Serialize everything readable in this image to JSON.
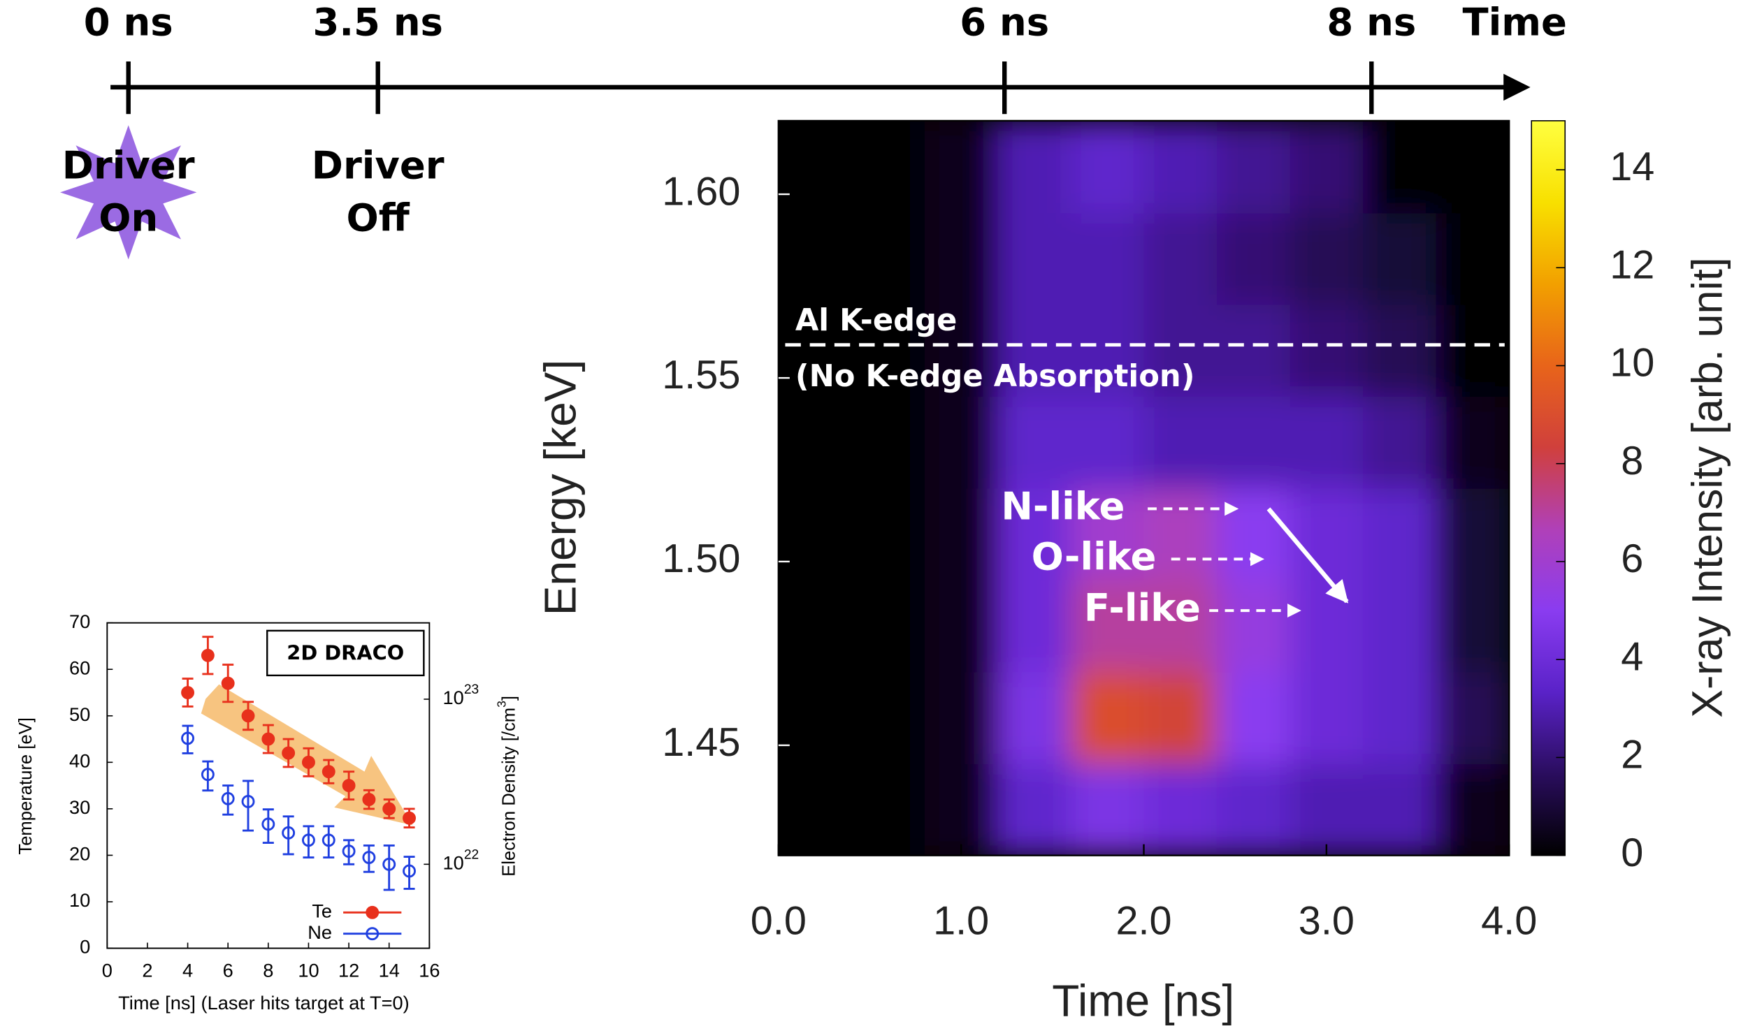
{
  "timeline": {
    "ticks": [
      "0 ns",
      "3.5 ns",
      "6 ns",
      "8 ns"
    ],
    "axis_label": "Time",
    "events": [
      {
        "lines": [
          "Driver",
          "On"
        ]
      },
      {
        "lines": [
          "Driver",
          "Off"
        ]
      }
    ]
  },
  "chart_data": [
    {
      "type": "heatmap",
      "xlabel": "Time [ns]",
      "ylabel": "Energy [keV]",
      "colorbar_label": "X-ray Intensity [arb. unit]",
      "xlim": [
        0,
        4
      ],
      "xticks": [
        {
          "value": 0,
          "label": "0.0"
        },
        {
          "value": 1,
          "label": "1.0"
        },
        {
          "value": 2,
          "label": "2.0"
        },
        {
          "value": 3,
          "label": "3.0"
        },
        {
          "value": 4,
          "label": "4.0"
        }
      ],
      "ylim": [
        1.42,
        1.62
      ],
      "yticks": [
        1.45,
        {
          "value": 1.5,
          "label": "1.50"
        },
        1.55,
        {
          "value": 1.6,
          "label": "1.60"
        }
      ],
      "zlim": [
        0,
        15
      ],
      "zticks": [
        0,
        2,
        4,
        6,
        8,
        10,
        12,
        14
      ],
      "colorscale": [
        "#000000",
        "#2a0d5e",
        "#5a22c8",
        "#8a3cf0",
        "#b040b8",
        "#d0403c",
        "#e8641a",
        "#f2a000",
        "#f8e000",
        "#ffff40"
      ],
      "x_bins": [
        0,
        0.4,
        0.8,
        1.2,
        1.6,
        2.0,
        2.4,
        2.8,
        3.2,
        3.6,
        4.0
      ],
      "y_bins": [
        1.42,
        1.445,
        1.47,
        1.495,
        1.52,
        1.545,
        1.57,
        1.595,
        1.62
      ],
      "values": [
        [
          0,
          0,
          0.5,
          3.5,
          4.5,
          4,
          3.5,
          3,
          3,
          0.5
        ],
        [
          0,
          0,
          0.5,
          4.5,
          9,
          8.5,
          5,
          4,
          3.5,
          1.5
        ],
        [
          0,
          0,
          0.5,
          4,
          7,
          7,
          5.5,
          4,
          3.5,
          1
        ],
        [
          0,
          0,
          0.5,
          4,
          6,
          6.5,
          5,
          4,
          3.5,
          1
        ],
        [
          0,
          0,
          0.5,
          3.5,
          3.5,
          3,
          3,
          3,
          2.5,
          0.5
        ],
        [
          0,
          0,
          0.5,
          3,
          3,
          2.5,
          2.5,
          2,
          1.5,
          0
        ],
        [
          0,
          0,
          0.5,
          3,
          3,
          2.5,
          2,
          1.5,
          1,
          0
        ],
        [
          0,
          0,
          0.5,
          3,
          3.5,
          3,
          2.5,
          2,
          0,
          0
        ]
      ],
      "reference_line": {
        "y": 1.559,
        "label": "Al K-edge",
        "note": "(No K-edge Absorption)"
      },
      "annotations": [
        "N-like",
        "O-like",
        "F-like"
      ]
    },
    {
      "type": "errorbar",
      "annotation": "2D DRACO",
      "xlabel": "Time [ns] (Laser hits target at T=0)",
      "ylabel": "Temperature [eV]",
      "y2label": {
        "text": "Electron Density [/cm",
        "sup": "3",
        "end": "]"
      },
      "x": [
        4,
        5,
        6,
        7,
        8,
        9,
        10,
        11,
        12,
        13,
        14,
        15
      ],
      "xlim": [
        0,
        16
      ],
      "xticks": [
        0,
        2,
        4,
        6,
        8,
        10,
        12,
        14,
        16
      ],
      "ylim": [
        0,
        70
      ],
      "yticks": [
        0,
        10,
        20,
        30,
        40,
        50,
        60,
        70
      ],
      "y2scale": "log",
      "y2lim": [
        3.1e+21,
        2.9e+23
      ],
      "y2ticks": [
        {
          "value": 1e+22,
          "label": "10",
          "exponent": "22"
        },
        {
          "value": 1e+23,
          "label": "10",
          "exponent": "23"
        }
      ],
      "legend": "lower right",
      "series": [
        {
          "name": "Te",
          "color": "#e8301c",
          "marker": "filled",
          "values": [
            55,
            63,
            57,
            50,
            45,
            42,
            40,
            38,
            35,
            32,
            30,
            28
          ],
          "errors": [
            3,
            4,
            4,
            3,
            3,
            3,
            3,
            2.5,
            3,
            2,
            2,
            2
          ]
        },
        {
          "name": "Ne",
          "color": "#1f3fe0",
          "marker": "open",
          "axis": "y2",
          "values": [
            5.8e+22,
            3.5e+22,
            2.5e+22,
            2.4e+22,
            1.75e+22,
            1.55e+22,
            1.4e+22,
            1.4e+22,
            1.2e+22,
            1.1e+22,
            1e+22,
            9.1e+21
          ],
          "errors": [
            1.1e+22,
            7e+21,
            5e+21,
            8e+21,
            4e+21,
            4e+21,
            3e+21,
            3e+21,
            2e+21,
            2e+21,
            3e+21,
            2e+21
          ]
        }
      ]
    }
  ]
}
